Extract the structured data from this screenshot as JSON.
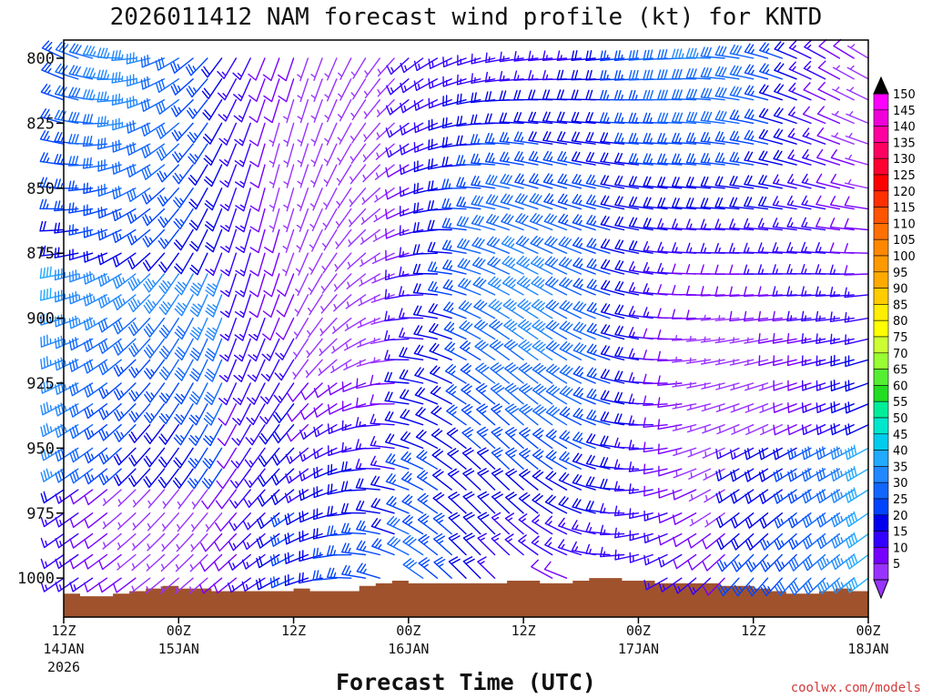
{
  "chart_data": {
    "type": "wind-barb-profile",
    "title": "2026011412 NAM forecast wind profile (kt) for KNTD",
    "xlabel": "Forecast Time (UTC)",
    "ylabel": "",
    "credit": "coolwx.com/models",
    "x_ticks": [
      {
        "label": "12Z",
        "date": "14JAN",
        "year": "2026",
        "hour": 0
      },
      {
        "label": "00Z",
        "date": "15JAN",
        "hour": 12
      },
      {
        "label": "12Z",
        "date": "",
        "hour": 24
      },
      {
        "label": "00Z",
        "date": "16JAN",
        "hour": 36
      },
      {
        "label": "12Z",
        "date": "",
        "hour": 48
      },
      {
        "label": "00Z",
        "date": "17JAN",
        "hour": 60
      },
      {
        "label": "12Z",
        "date": "",
        "hour": 72
      },
      {
        "label": "00Z",
        "date": "18JAN",
        "hour": 84
      }
    ],
    "xlim": [
      0,
      84
    ],
    "y_ticks": [
      800,
      825,
      850,
      875,
      900,
      925,
      950,
      975,
      1000
    ],
    "ylim": [
      793,
      1015
    ],
    "pressure_rows": [
      800,
      808,
      816,
      825,
      833,
      841,
      850,
      858,
      866,
      875,
      883,
      891,
      900,
      908,
      916,
      925,
      933,
      941,
      950,
      958,
      966,
      975,
      983,
      991,
      1000,
      1008
    ],
    "colorbar": {
      "labels": [
        "150",
        "145",
        "140",
        "135",
        "130",
        "125",
        "120",
        "115",
        "110",
        "105",
        "100",
        "95",
        "90",
        "85",
        "80",
        "75",
        "70",
        "65",
        "60",
        "55",
        "50",
        "45",
        "40",
        "35",
        "30",
        "25",
        "20",
        "15",
        "10",
        "5"
      ],
      "colors": [
        "#ff00ff",
        "#f000d8",
        "#ff00a0",
        "#ff0060",
        "#ff0030",
        "#ff0000",
        "#ff3000",
        "#ff5500",
        "#ff7000",
        "#ff8800",
        "#ff9900",
        "#ffaa00",
        "#ffcc00",
        "#ffee00",
        "#ffff00",
        "#ccff33",
        "#99ff33",
        "#55ee33",
        "#22dd22",
        "#00ee99",
        "#00e8cc",
        "#00ccee",
        "#22aaff",
        "#2288ff",
        "#1166ff",
        "#0044ff",
        "#0000ee",
        "#3300ff",
        "#7700ff",
        "#9933ff"
      ]
    },
    "terrain_color": "#a0522d",
    "terrain_pressure": [
      1006,
      1007,
      1007,
      1006,
      1005,
      1004,
      1003,
      1004,
      1004,
      1005,
      1005,
      1005,
      1005,
      1005,
      1004,
      1005,
      1005,
      1005,
      1003,
      1002,
      1001,
      1002,
      1002,
      1002,
      1002,
      1002,
      1002,
      1001,
      1001,
      1002,
      1002,
      1001,
      1000,
      1000,
      1001,
      1001,
      1002,
      1002,
      1002,
      1002,
      1003,
      1003,
      1004,
      1005,
      1006,
      1006,
      1005,
      1004,
      1005
    ]
  }
}
